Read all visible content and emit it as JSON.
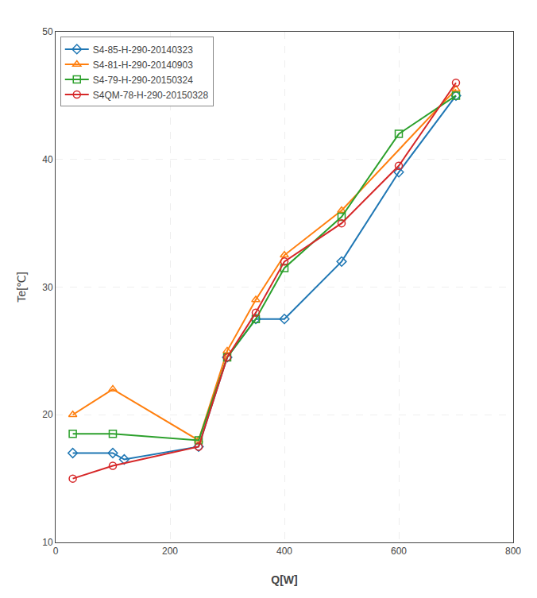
{
  "chart_data": {
    "type": "line",
    "xlabel": "Q[W]",
    "ylabel": "Te[℃]",
    "series": [
      {
        "name": "S4-85-H-290-20140323",
        "marker": "diamond",
        "x": [
          30,
          100,
          120,
          250,
          300,
          350,
          400,
          500,
          600,
          700
        ],
        "values": [
          17,
          17,
          16.5,
          17.5,
          24.5,
          27.5,
          27.5,
          32,
          39,
          45
        ]
      },
      {
        "name": "S4-81-H-290-20140903",
        "marker": "triangle-up",
        "x": [
          30,
          100,
          250,
          300,
          350,
          400,
          500,
          700
        ],
        "values": [
          20,
          22,
          18,
          25,
          29,
          32.5,
          36,
          45.5
        ]
      },
      {
        "name": "S4-79-H-290-20150324",
        "marker": "square",
        "x": [
          30,
          100,
          250,
          300,
          350,
          400,
          500,
          600,
          700
        ],
        "values": [
          18.5,
          18.5,
          18,
          24.5,
          27.5,
          31.5,
          35.5,
          42,
          45
        ]
      },
      {
        "name": "S4QM-78-H-290-20150328",
        "marker": "circle",
        "x": [
          30,
          100,
          250,
          300,
          350,
          400,
          500,
          600,
          700
        ],
        "values": [
          15,
          16,
          17.5,
          24.5,
          28,
          32,
          35,
          39.5,
          46
        ]
      }
    ],
    "xlim": [
      0,
      800
    ],
    "ylim": [
      10,
      50
    ],
    "xticks": [
      0,
      200,
      400,
      600,
      800
    ],
    "yticks": [
      10,
      20,
      30,
      40,
      50
    ],
    "grid": true,
    "legend": "upper left"
  }
}
